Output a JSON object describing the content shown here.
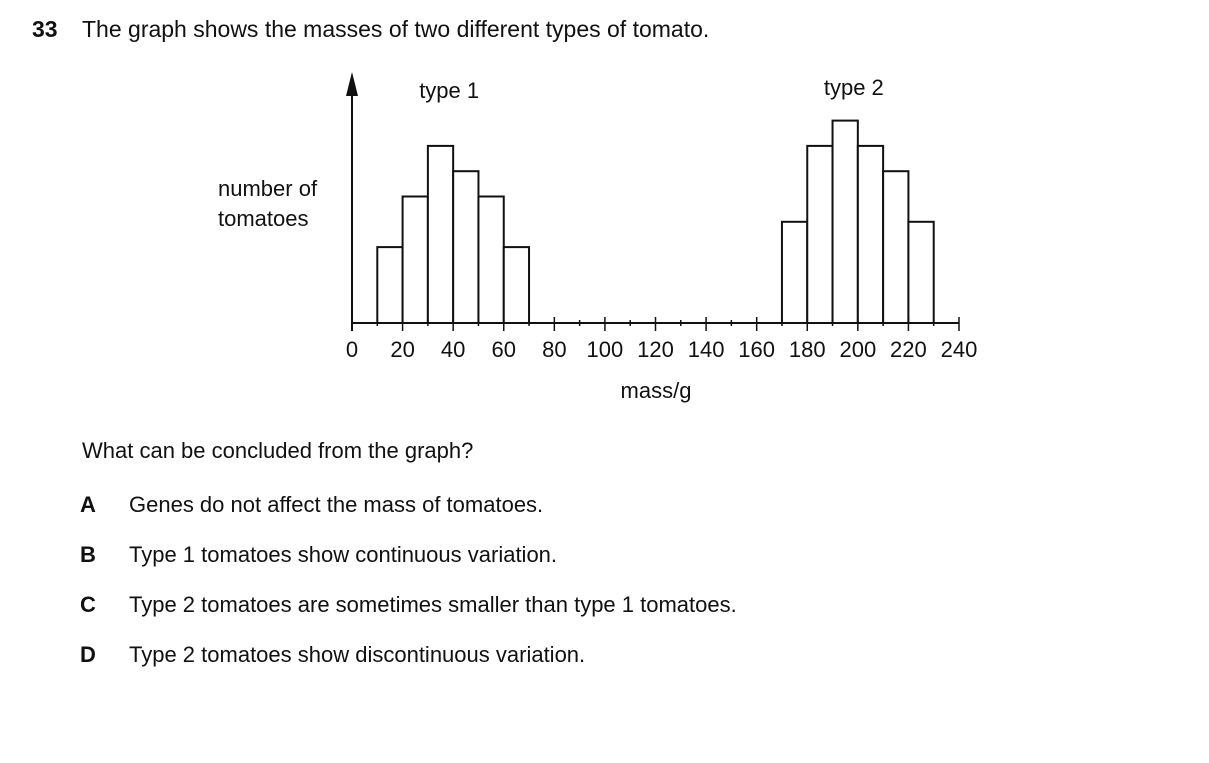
{
  "question": {
    "number": "33",
    "stem": "The graph shows the masses of two different types of tomato.",
    "prompt": "What can be concluded from the graph?",
    "options": [
      {
        "letter": "A",
        "text": "Genes do not affect the mass of tomatoes."
      },
      {
        "letter": "B",
        "text": "Type 1 tomatoes show continuous variation."
      },
      {
        "letter": "C",
        "text": "Type 2 tomatoes are sometimes smaller than type 1 tomatoes."
      },
      {
        "letter": "D",
        "text": "Type 2 tomatoes show discontinuous variation."
      }
    ]
  },
  "chart_data": {
    "type": "bar",
    "title": "",
    "xlabel": "mass/g",
    "ylabel": "number of tomatoes",
    "xlim": [
      0,
      240
    ],
    "x_ticks": [
      0,
      20,
      40,
      60,
      80,
      100,
      120,
      140,
      160,
      180,
      200,
      220,
      240
    ],
    "x_minor_step": 10,
    "y_axis_has_scale": false,
    "ylim": [
      0,
      8
    ],
    "grid": false,
    "series": [
      {
        "name": "type 1",
        "bins": [
          [
            10,
            20
          ],
          [
            20,
            30
          ],
          [
            30,
            40
          ],
          [
            40,
            50
          ],
          [
            50,
            60
          ],
          [
            60,
            70
          ]
        ],
        "values": [
          3,
          5,
          7,
          6,
          5,
          3
        ]
      },
      {
        "name": "type 2",
        "bins": [
          [
            170,
            180
          ],
          [
            180,
            190
          ],
          [
            190,
            200
          ],
          [
            200,
            210
          ],
          [
            210,
            220
          ],
          [
            220,
            230
          ]
        ],
        "values": [
          4,
          7,
          8,
          7,
          6,
          4
        ]
      }
    ]
  }
}
